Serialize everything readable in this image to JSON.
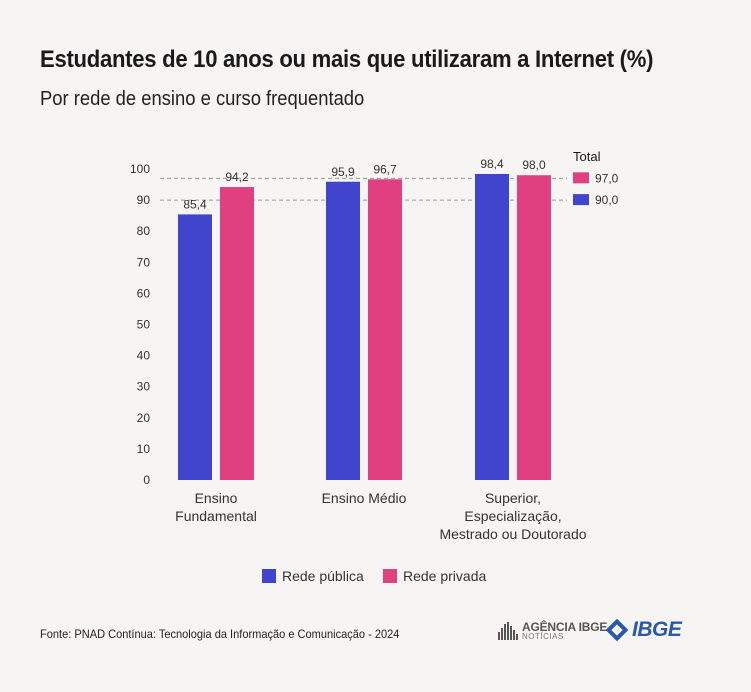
{
  "title": "Estudantes de 10 anos ou mais que utilizaram a Internet (%)",
  "subtitle": "Por rede de ensino e curso frequentado",
  "source": "Fonte: PNAD Contínua: Tecnologia da Informação e Comunicação - 2024",
  "logos": {
    "agencia_line1": "AGÊNCIA IBGE",
    "agencia_line2": "NOTÍCIAS",
    "ibge": "IBGE"
  },
  "colors": {
    "publica": "#4145cd",
    "privada": "#e0407f",
    "grid": "#9a9a9a",
    "background": "#f6f5f3"
  },
  "chart_data": {
    "type": "bar",
    "categories": [
      [
        "Ensino",
        "Fundamental"
      ],
      [
        "Ensino Médio"
      ],
      [
        "Superior,",
        "Especialização,",
        "Mestrado ou Doutorado"
      ]
    ],
    "series": [
      {
        "name": "Rede pública",
        "values": [
          85.4,
          95.9,
          98.4
        ],
        "labels": [
          "85,4",
          "95,9",
          "98,4"
        ]
      },
      {
        "name": "Rede privada",
        "values": [
          94.2,
          96.7,
          98.0
        ],
        "labels": [
          "94,2",
          "96,7",
          "98,0"
        ]
      }
    ],
    "ylim": [
      0,
      100
    ],
    "yticks": [
      0,
      10,
      20,
      30,
      40,
      50,
      60,
      70,
      80,
      90,
      100
    ],
    "totals": {
      "title": "Total",
      "items": [
        {
          "series": "Rede privada",
          "value": 97.0,
          "label": "97,0"
        },
        {
          "series": "Rede pública",
          "value": 90.0,
          "label": "90,0"
        }
      ]
    },
    "legend_position": "bottom-center",
    "xlabel": "",
    "ylabel": ""
  }
}
